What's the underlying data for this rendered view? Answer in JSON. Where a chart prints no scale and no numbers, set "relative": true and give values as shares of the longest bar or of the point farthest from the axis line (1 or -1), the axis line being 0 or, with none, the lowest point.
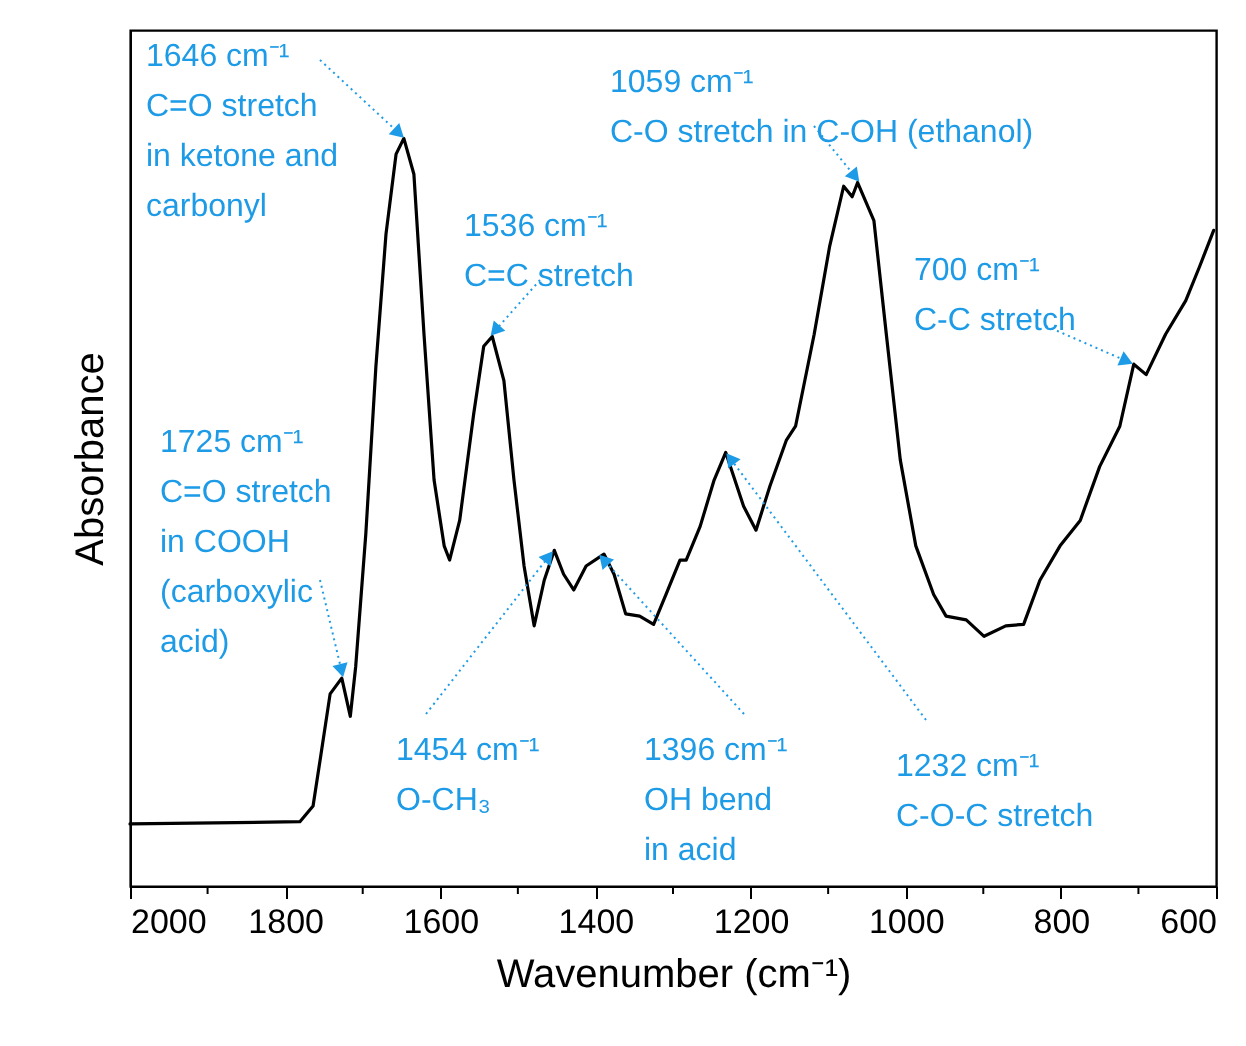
{
  "chart_data": {
    "type": "line",
    "xlabel": "Wavenumber (cm⁻¹)",
    "ylabel": "Absorbance",
    "relative": true,
    "xlim": [
      2000,
      600
    ],
    "xticks": [
      2000,
      {
        "value": 1900,
        "label": null
      },
      1800,
      {
        "value": 1700,
        "label": null
      },
      1600,
      {
        "value": 1500,
        "label": null
      },
      1400,
      {
        "value": 1300,
        "label": null
      },
      1200,
      {
        "value": 1100,
        "label": null
      },
      1000,
      {
        "value": 900,
        "label": null
      },
      800,
      {
        "value": 700,
        "label": null
      },
      600
    ],
    "grid": false,
    "series": [
      {
        "color": "#000000",
        "x": [
          2000,
          1781,
          1764,
          1755,
          1742,
          1727,
          1716,
          1709,
          1696,
          1683,
          1670,
          1657,
          1647,
          1634,
          1621,
          1608,
          1595,
          1588,
          1575,
          1557,
          1544,
          1533,
          1518,
          1505,
          1492,
          1479,
          1466,
          1453,
          1441,
          1428,
          1412,
          1389,
          1376,
          1361,
          1343,
          1325,
          1309,
          1291,
          1283,
          1265,
          1247,
          1232,
          1209,
          1193,
          1175,
          1154,
          1142,
          1118,
          1098,
          1080,
          1069,
          1062,
          1041,
          1025,
          1007,
          987,
          964,
          948,
          922,
          899,
          871,
          848,
          827,
          801,
          775,
          750,
          724,
          706,
          690,
          665,
          639,
          621,
          603
        ],
        "values": [
          0.083,
          0.086,
          0.107,
          0.168,
          0.257,
          0.278,
          0.227,
          0.294,
          0.471,
          0.695,
          0.872,
          0.979,
          1.0,
          0.952,
          0.738,
          0.543,
          0.455,
          0.436,
          0.489,
          0.631,
          0.722,
          0.735,
          0.676,
          0.543,
          0.428,
          0.348,
          0.409,
          0.449,
          0.417,
          0.396,
          0.428,
          0.444,
          0.417,
          0.364,
          0.361,
          0.35,
          0.39,
          0.436,
          0.436,
          0.481,
          0.543,
          0.58,
          0.508,
          0.476,
          0.535,
          0.596,
          0.615,
          0.738,
          0.856,
          0.936,
          0.922,
          0.941,
          0.89,
          0.738,
          0.57,
          0.455,
          0.39,
          0.361,
          0.356,
          0.334,
          0.348,
          0.35,
          0.409,
          0.455,
          0.489,
          0.561,
          0.615,
          0.698,
          0.684,
          0.738,
          0.783,
          0.829,
          0.877
        ]
      }
    ],
    "annotations": [
      {
        "text": "1646 cm⁻¹\nC=O stretch\nin ketone and\ncarbonyl",
        "x": 1646,
        "y": 1.0
      },
      {
        "text": "1536 cm⁻¹\nC=C stretch",
        "x": 1536,
        "y": 0.735
      },
      {
        "text": "1725 cm⁻¹\nC=O stretch\nin COOH\n(carboxylic\nacid)",
        "x": 1725,
        "y": 0.278
      },
      {
        "text": "1454 cm⁻¹\nO-CH₃",
        "x": 1454,
        "y": 0.449
      },
      {
        "text": "1396 cm⁻¹\nOH bend\nin acid",
        "x": 1396,
        "y": 0.444
      },
      {
        "text": "1059 cm⁻¹\nC-O stretch in C-OH (ethanol)",
        "x": 1059,
        "y": 0.941
      },
      {
        "text": "1232 cm⁻¹\nC-O-C stretch",
        "x": 1232,
        "y": 0.58
      },
      {
        "text": "700 cm⁻¹\nC-C stretch",
        "x": 706,
        "y": 0.698
      }
    ]
  }
}
